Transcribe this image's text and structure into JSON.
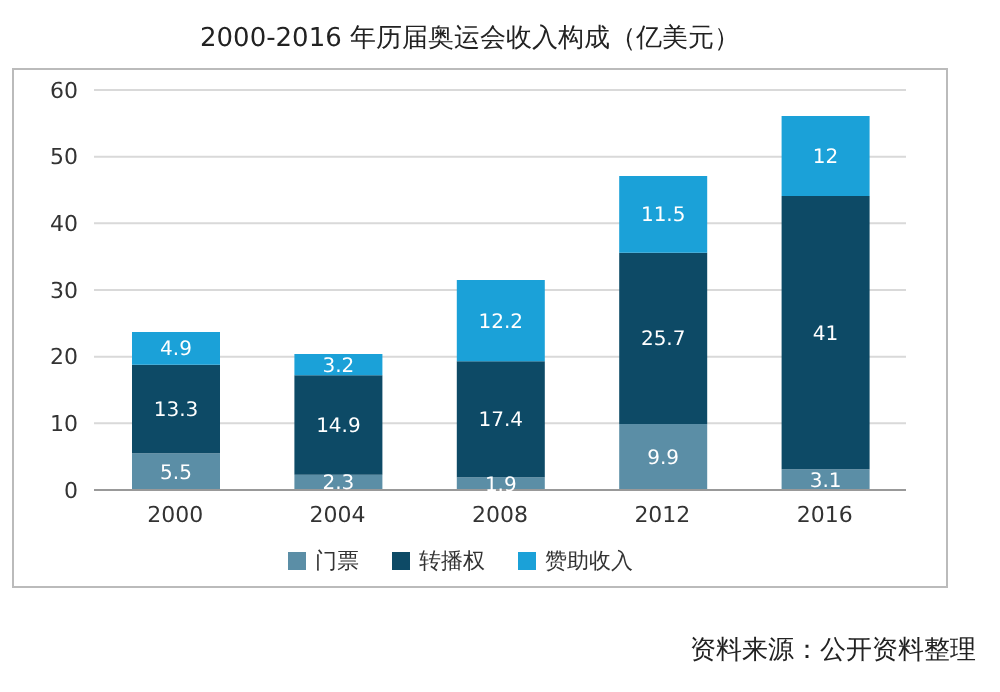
{
  "chart_data": {
    "type": "bar",
    "title": "2000-2016 年历届奥运会收入构成（亿美元）",
    "categories": [
      "2000",
      "2004",
      "2008",
      "2012",
      "2016"
    ],
    "stacked": true,
    "series": [
      {
        "name": "门票",
        "color": "#5b8ea6",
        "values": [
          5.5,
          2.3,
          1.9,
          9.9,
          3.1
        ]
      },
      {
        "name": "转播权",
        "color": "#0d4a66",
        "values": [
          13.3,
          14.9,
          17.4,
          25.7,
          41
        ]
      },
      {
        "name": "赞助收入",
        "color": "#1ba1d8",
        "values": [
          4.9,
          3.2,
          12.2,
          11.5,
          12
        ]
      }
    ],
    "ylim": [
      0,
      60
    ],
    "yticks": [
      0,
      10,
      20,
      30,
      40,
      50,
      60
    ],
    "grid": "y",
    "legend": "bottom",
    "data_labels": true,
    "annotations": [
      "资料来源：公开资料整理"
    ]
  }
}
